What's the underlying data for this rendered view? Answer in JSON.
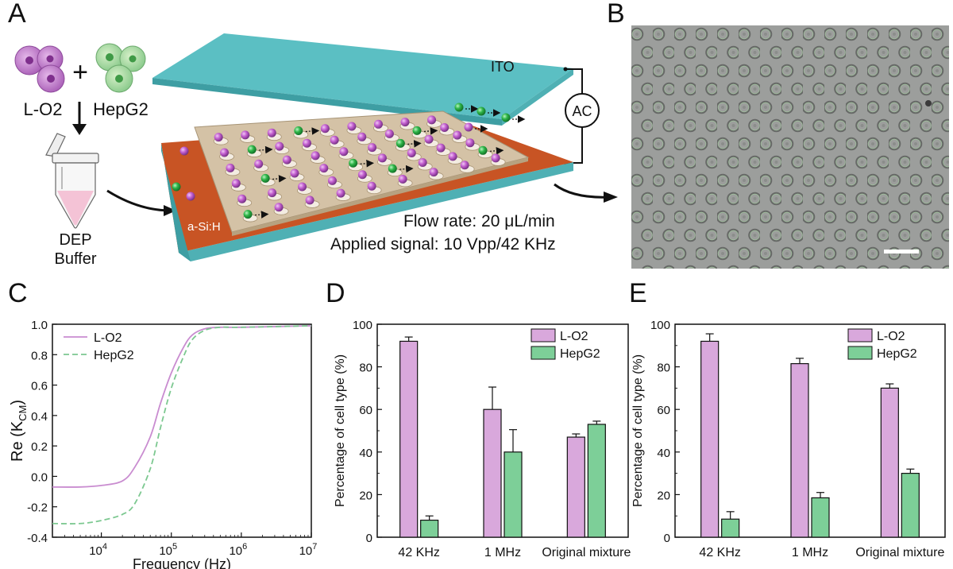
{
  "panels": {
    "a": "A",
    "b": "B",
    "c": "C",
    "d": "D",
    "e": "E"
  },
  "schematic": {
    "cell1": "L-O2",
    "cell2": "HepG2",
    "plus": "+",
    "tube_label_1": "DEP",
    "tube_label_2": "Buffer",
    "ito_label": "ITO",
    "ac_label": "AC",
    "substrate_label": "a-Si:H",
    "flow_rate": "Flow rate: 20 μL/min",
    "applied_signal": "Applied signal: 10 Vpp/42 KHz",
    "colors": {
      "l_o2": "#b563c2",
      "hepg2": "#2fb34a",
      "ito": "#5bbfc3",
      "electrode": "#c85424",
      "chip": "#d4c2a6"
    }
  },
  "chart_data": [
    {
      "id": "C",
      "type": "line",
      "xlabel": "Frequency (Hz)",
      "ylabel_prefix": "Re (K",
      "ylabel_sub": "CM",
      "ylabel_suffix": ")",
      "x_scale": "log",
      "xlim": [
        2000,
        10000000
      ],
      "ylim": [
        -0.4,
        1.0
      ],
      "yticks": [
        "1.0",
        "0.8",
        "0.6",
        "0.4",
        "0.2",
        "0.0",
        "-0.2",
        "-0.4"
      ],
      "xticks": [
        {
          "base": "10",
          "exp": "4"
        },
        {
          "base": "10",
          "exp": "5"
        },
        {
          "base": "10",
          "exp": "6"
        },
        {
          "base": "10",
          "exp": "7"
        }
      ],
      "legend_position": "top-left",
      "series": [
        {
          "name": "L-O2",
          "color": "#c98cd0",
          "dash": "solid",
          "x": [
            2000,
            5000,
            10000,
            20000,
            30000,
            50000,
            70000,
            100000,
            150000,
            200000,
            300000,
            500000,
            1000000,
            10000000
          ],
          "y": [
            -0.07,
            -0.07,
            -0.06,
            -0.03,
            0.06,
            0.26,
            0.48,
            0.68,
            0.85,
            0.93,
            0.97,
            0.98,
            0.98,
            0.99
          ]
        },
        {
          "name": "HepG2",
          "color": "#7cc890",
          "dash": "dashed",
          "x": [
            2000,
            5000,
            10000,
            20000,
            30000,
            50000,
            70000,
            100000,
            150000,
            200000,
            300000,
            500000,
            1000000,
            10000000
          ],
          "y": [
            -0.31,
            -0.31,
            -0.29,
            -0.25,
            -0.18,
            0.05,
            0.32,
            0.58,
            0.79,
            0.9,
            0.96,
            0.98,
            0.98,
            0.99
          ]
        }
      ]
    },
    {
      "id": "D",
      "type": "bar",
      "ylabel": "Percentage of cell type (%)",
      "categories": [
        "42 KHz",
        "1 MHz",
        "Original mixture"
      ],
      "ylim": [
        0,
        100
      ],
      "yticks": [
        "0",
        "20",
        "40",
        "60",
        "80",
        "100"
      ],
      "legend_position": "top-right",
      "series": [
        {
          "name": "L-O2",
          "color": "#d9a8dc",
          "values": [
            92,
            60,
            47
          ],
          "errors": [
            2,
            10.5,
            1.5
          ]
        },
        {
          "name": "HepG2",
          "color": "#7dcf98",
          "values": [
            8,
            40,
            53
          ],
          "errors": [
            2,
            10.5,
            1.5
          ]
        }
      ]
    },
    {
      "id": "E",
      "type": "bar",
      "ylabel": "Percentage of cell type (%)",
      "categories": [
        "42 KHz",
        "1 MHz",
        "Original mixture"
      ],
      "ylim": [
        0,
        100
      ],
      "yticks": [
        "0",
        "20",
        "40",
        "60",
        "80",
        "100"
      ],
      "legend_position": "top-right",
      "series": [
        {
          "name": "L-O2",
          "color": "#d9a8dc",
          "values": [
            92,
            81.5,
            70
          ],
          "errors": [
            3.5,
            2.5,
            2
          ]
        },
        {
          "name": "HepG2",
          "color": "#7dcf98",
          "values": [
            8.5,
            18.5,
            30
          ],
          "errors": [
            3.5,
            2.5,
            2
          ]
        }
      ]
    }
  ]
}
